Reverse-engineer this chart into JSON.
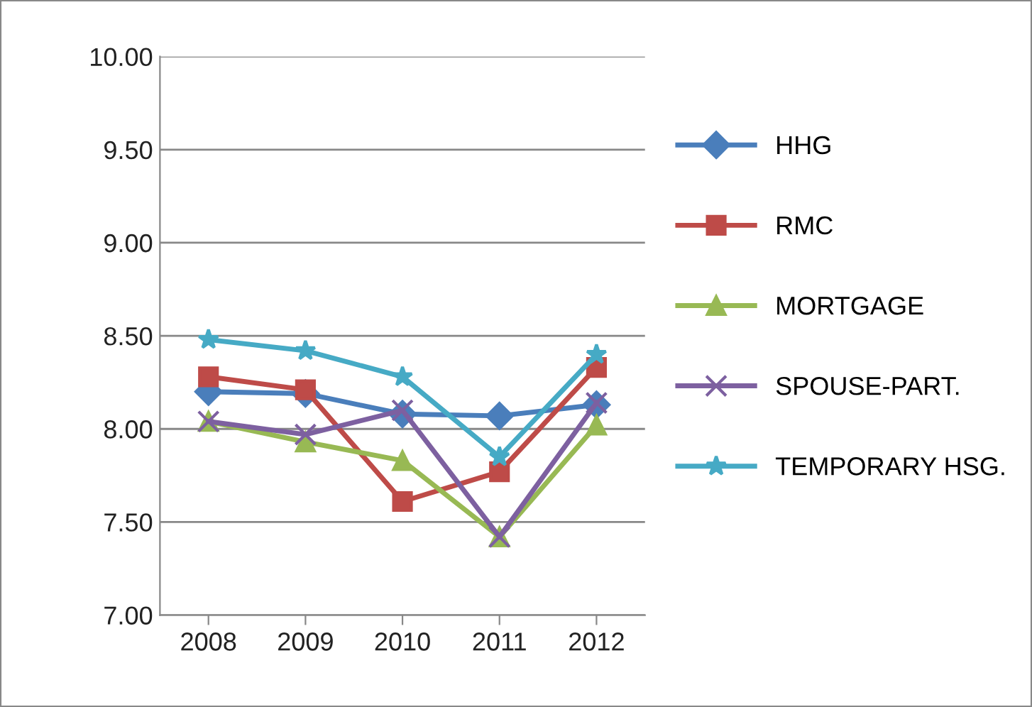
{
  "chart_data": {
    "type": "line",
    "categories": [
      "2008",
      "2009",
      "2010",
      "2011",
      "2012"
    ],
    "series": [
      {
        "name": "HHG",
        "color": "#4a7ebb",
        "marker": "diamond",
        "values": [
          8.2,
          8.19,
          8.08,
          8.07,
          8.13
        ]
      },
      {
        "name": "RMC",
        "color": "#be4b48",
        "marker": "square",
        "values": [
          8.28,
          8.21,
          7.61,
          7.77,
          8.33
        ]
      },
      {
        "name": "MORTGAGE",
        "color": "#98b954",
        "marker": "triangle",
        "values": [
          8.04,
          7.93,
          7.83,
          7.42,
          8.02
        ]
      },
      {
        "name": "SPOUSE-PART.",
        "color": "#7d60a0",
        "marker": "cross",
        "values": [
          8.04,
          7.97,
          8.1,
          7.42,
          8.14
        ]
      },
      {
        "name": "TEMPORARY HSG.",
        "color": "#46aac5",
        "marker": "star",
        "values": [
          8.48,
          8.42,
          8.28,
          7.85,
          8.4
        ]
      }
    ],
    "ylim": [
      7.0,
      10.0
    ],
    "yticks": [
      {
        "value": 7.0,
        "label": "7.00"
      },
      {
        "value": 7.5,
        "label": "7.50"
      },
      {
        "value": 8.0,
        "label": "8.00"
      },
      {
        "value": 8.5,
        "label": "8.50"
      },
      {
        "value": 9.0,
        "label": "9.00"
      },
      {
        "value": 9.5,
        "label": "9.50"
      },
      {
        "value": 10.0,
        "label": "10.00"
      }
    ],
    "grid": "y",
    "legend": "right",
    "line_style": "solid"
  }
}
